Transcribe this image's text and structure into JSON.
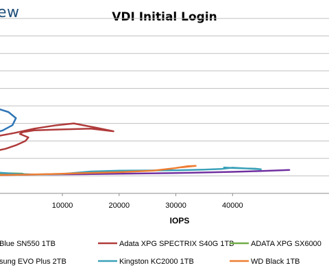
{
  "logo": {
    "text": "ew",
    "color": "#1f4e79"
  },
  "chart_data": {
    "type": "line",
    "title": "VDI Initial Login",
    "xlabel": "IOPS",
    "ylabel": "",
    "xlim": [
      -1000,
      57000
    ],
    "ylim": [
      0,
      1.0
    ],
    "x_ticks": [
      10000,
      20000,
      30000,
      40000
    ],
    "x_tick_labels": [
      "10000",
      "20000",
      "30000",
      "40000"
    ],
    "y_gridlines": [
      0.1,
      0.2,
      0.3,
      0.4,
      0.5,
      0.6,
      0.7,
      0.8,
      0.9,
      1.0
    ],
    "grid": true,
    "legend_position": "bottom",
    "series": [
      {
        "name": "Blue SN550 1TB",
        "color": "#2e75b6",
        "points": [
          [
            -1000,
            0.48
          ],
          [
            500,
            0.465
          ],
          [
            1800,
            0.43
          ],
          [
            1200,
            0.39
          ],
          [
            -500,
            0.36
          ],
          [
            -1000,
            0.355
          ]
        ]
      },
      {
        "name": "Adata XPG SPECTRIX S40G 1TB",
        "color": "#b03a3a",
        "points": [
          [
            -1000,
            0.33
          ],
          [
            1500,
            0.345
          ],
          [
            5000,
            0.37
          ],
          [
            9000,
            0.39
          ],
          [
            12000,
            0.4
          ],
          [
            16000,
            0.375
          ],
          [
            19000,
            0.355
          ],
          [
            15000,
            0.37
          ],
          [
            9000,
            0.365
          ],
          [
            5000,
            0.36
          ],
          [
            3000,
            0.35
          ],
          [
            2500,
            0.34
          ],
          [
            4000,
            0.32
          ],
          [
            3500,
            0.3
          ],
          [
            1800,
            0.275
          ],
          [
            0,
            0.255
          ],
          [
            -1000,
            0.248
          ]
        ]
      },
      {
        "name": "ADATA XPG SX6000",
        "color": "#70ad47",
        "points": [
          [
            -1000,
            0.115
          ],
          [
            1000,
            0.115
          ],
          [
            3000,
            0.113
          ]
        ]
      },
      {
        "name": "sung EVO Plus 2TB",
        "color": "#7030a0",
        "points": [
          [
            -1000,
            0.105
          ],
          [
            5000,
            0.108
          ],
          [
            15000,
            0.11
          ],
          [
            25000,
            0.114
          ],
          [
            33000,
            0.118
          ],
          [
            40000,
            0.123
          ],
          [
            46000,
            0.129
          ],
          [
            50000,
            0.134
          ]
        ]
      },
      {
        "name": "Kingston KC2000 1TB",
        "color": "#3aa0b8",
        "points": [
          [
            -1000,
            0.118
          ],
          [
            1500,
            0.112
          ],
          [
            5000,
            0.108
          ],
          [
            10000,
            0.111
          ],
          [
            15000,
            0.125
          ],
          [
            20000,
            0.13
          ],
          [
            30000,
            0.132
          ],
          [
            35000,
            0.136
          ],
          [
            38000,
            0.14
          ],
          [
            40000,
            0.147
          ],
          [
            45000,
            0.138
          ],
          [
            44000,
            0.141
          ],
          [
            40000,
            0.145
          ],
          [
            38500,
            0.148
          ]
        ]
      },
      {
        "name": "WD Black 1TB",
        "color": "#ed7d31",
        "points": [
          [
            -1000,
            0.105
          ],
          [
            3000,
            0.107
          ],
          [
            8000,
            0.11
          ],
          [
            14000,
            0.116
          ],
          [
            20000,
            0.121
          ],
          [
            26000,
            0.13
          ],
          [
            30000,
            0.145
          ],
          [
            32000,
            0.155
          ],
          [
            33500,
            0.157
          ],
          [
            31000,
            0.149
          ]
        ]
      }
    ]
  }
}
